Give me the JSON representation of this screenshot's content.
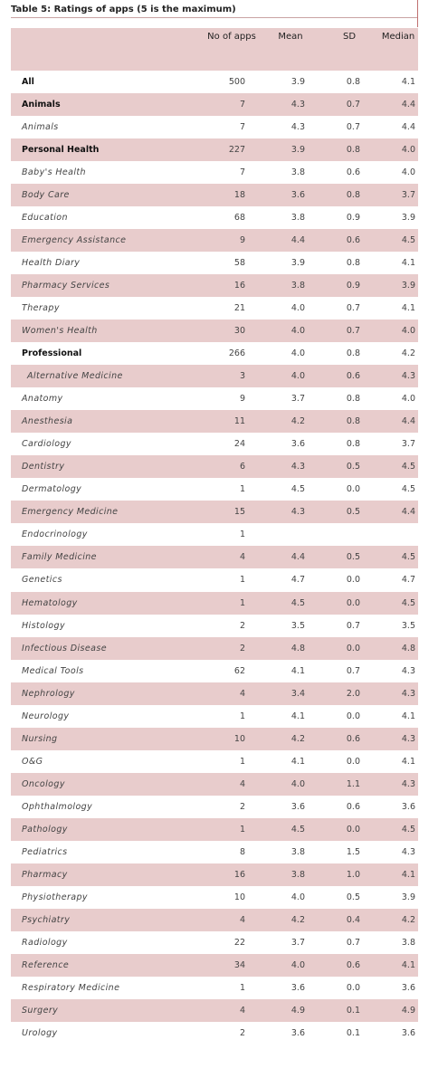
{
  "title": "Table 5: Ratings of apps (5 is the maximum)",
  "table": {
    "header": [
      "No of apps",
      "Mean",
      "SD",
      "Median"
    ],
    "rows": [
      [
        "All",
        "500",
        "3.9",
        "0.8",
        "4.1"
      ],
      [
        "Animals",
        "7",
        "4.3",
        "0.7",
        "4.4"
      ],
      [
        "Animals",
        "7",
        "4.3",
        "0.7",
        "4.4"
      ],
      [
        "Personal Health",
        "227",
        "3.9",
        "0.8",
        "4.0"
      ],
      [
        "Baby's Health",
        "7",
        "3.8",
        "0.6",
        "4.0"
      ],
      [
        "Body Care",
        "18",
        "3.6",
        "0.8",
        "3.7"
      ],
      [
        "Education",
        "68",
        "3.8",
        "0.9",
        "3.9"
      ],
      [
        "Emergency Assistance",
        "9",
        "4.4",
        "0.6",
        "4.5"
      ],
      [
        "Health Diary",
        "58",
        "3.9",
        "0.8",
        "4.1"
      ],
      [
        "Pharmacy Services",
        "16",
        "3.8",
        "0.9",
        "3.9"
      ],
      [
        "Therapy",
        "21",
        "4.0",
        "0.7",
        "4.1"
      ],
      [
        "Women's Health",
        "30",
        "4.0",
        "0.7",
        "4.0"
      ],
      [
        "Professional",
        "266",
        "4.0",
        "0.8",
        "4.2"
      ],
      [
        "Alternative Medicine",
        "3",
        "4.0",
        "0.6",
        "4.3"
      ],
      [
        "Anatomy",
        "9",
        "3.7",
        "0.8",
        "4.0"
      ],
      [
        "Anesthesia",
        "11",
        "4.2",
        "0.8",
        "4.4"
      ],
      [
        "Cardiology",
        "24",
        "3.6",
        "0.8",
        "3.7"
      ],
      [
        "Dentistry",
        "6",
        "4.3",
        "0.5",
        "4.5"
      ],
      [
        "Dermatology",
        "1",
        "4.5",
        "0.0",
        "4.5"
      ],
      [
        "Emergency Medicine",
        "15",
        "4.3",
        "0.5",
        "4.4"
      ],
      [
        "Endocrinology",
        "1",
        null,
        null,
        null
      ],
      [
        "Family Medicine",
        "4",
        "4.4",
        "0.5",
        "4.5"
      ],
      [
        "Genetics",
        "1",
        "4.7",
        "0.0",
        "4.7"
      ],
      [
        "Hematology",
        "1",
        "4.5",
        "0.0",
        "4.5"
      ],
      [
        "Histology",
        "2",
        "3.5",
        "0.7",
        "3.5"
      ],
      [
        "Infectious Disease",
        "2",
        "4.8",
        "0.0",
        "4.8"
      ],
      [
        "Medical Tools",
        "62",
        "4.1",
        "0.7",
        "4.3"
      ],
      [
        "Nephrology",
        "4",
        "3.4",
        "2.0",
        "4.3"
      ],
      [
        "Neurology",
        "1",
        "4.1",
        "0.0",
        "4.1"
      ],
      [
        "Nursing",
        "10",
        "4.2",
        "0.6",
        "4.3"
      ],
      [
        "O&G",
        "1",
        "4.1",
        "0.0",
        "4.1"
      ],
      [
        "Oncology",
        "4",
        "4.0",
        "1.1",
        "4.3"
      ],
      [
        "Ophthalmology",
        "2",
        "3.6",
        "0.6",
        "3.6"
      ],
      [
        "Pathology",
        "1",
        "4.5",
        "0.0",
        "4.5"
      ],
      [
        "Pediatrics",
        "8",
        "3.8",
        "1.5",
        "4.3"
      ],
      [
        "Pharmacy",
        "16",
        "3.8",
        "1.0",
        "4.1"
      ],
      [
        "Physiotherapy",
        "10",
        "4.0",
        "0.5",
        "3.9"
      ],
      [
        "Psychiatry",
        "4",
        "4.2",
        "0.4",
        "4.2"
      ],
      [
        "Radiology",
        "22",
        "3.7",
        "0.7",
        "3.8"
      ],
      [
        "Reference",
        "34",
        "4.0",
        "0.6",
        "4.1"
      ],
      [
        "Respiratory Medicine",
        "1",
        "3.6",
        "0.0",
        "3.6"
      ],
      [
        "Surgery",
        "4",
        "4.9",
        "0.1",
        "4.9"
      ],
      [
        "Urology",
        "2",
        "3.6",
        "0.1",
        "3.6"
      ]
    ]
  }
}
